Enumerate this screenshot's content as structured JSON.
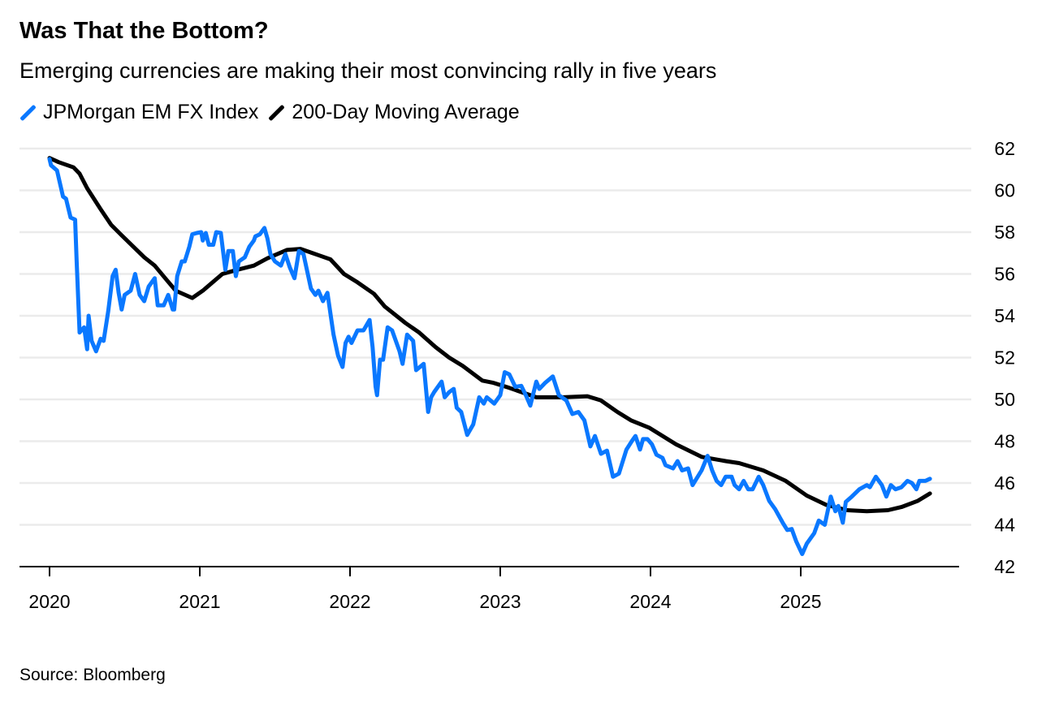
{
  "chart_data": {
    "type": "line",
    "title": "Was That the Bottom?",
    "subtitle": "Emerging currencies are making their most convincing rally in five years",
    "source": "Source: Bloomberg",
    "xlabel": "",
    "ylabel": "",
    "xlim": [
      2019.8,
      2025.95
    ],
    "ylim": [
      42,
      62
    ],
    "y_ticks": [
      42,
      44,
      46,
      48,
      50,
      52,
      54,
      56,
      58,
      60,
      62
    ],
    "x_ticks": [
      2020,
      2021,
      2022,
      2023,
      2024,
      2025
    ],
    "x_tick_labels": [
      "2020",
      "2021",
      "2022",
      "2023",
      "2024",
      "2025"
    ],
    "y_axis_side": "right",
    "grid": "horizontal",
    "legend_placement": "top-left",
    "series": [
      {
        "name": "JPMorgan EM FX Index",
        "color": "#0a78ff",
        "x": [
          2020.0,
          2020.01,
          2020.05,
          2020.09,
          2020.11,
          2020.14,
          2020.17,
          2020.18,
          2020.2,
          2020.23,
          2020.25,
          2020.26,
          2020.28,
          2020.31,
          2020.34,
          2020.36,
          2020.39,
          2020.42,
          2020.44,
          2020.46,
          2020.48,
          2020.5,
          2020.54,
          2020.57,
          2020.6,
          2020.63,
          2020.66,
          2020.7,
          2020.72,
          2020.76,
          2020.79,
          2020.82,
          2020.83,
          2020.85,
          2020.88,
          2020.9,
          2020.93,
          2020.95,
          2020.98,
          2021.01,
          2021.02,
          2021.04,
          2021.06,
          2021.09,
          2021.11,
          2021.14,
          2021.17,
          2021.19,
          2021.22,
          2021.24,
          2021.26,
          2021.3,
          2021.33,
          2021.36,
          2021.37,
          2021.4,
          2021.43,
          2021.45,
          2021.47,
          2021.5,
          2021.54,
          2021.57,
          2021.6,
          2021.63,
          2021.66,
          2021.69,
          2021.74,
          2021.77,
          2021.79,
          2021.82,
          2021.85,
          2021.87,
          2021.89,
          2021.92,
          2021.95,
          2021.97,
          2021.99,
          2022.01,
          2022.05,
          2022.09,
          2022.13,
          2022.15,
          2022.17,
          2022.18,
          2022.2,
          2022.22,
          2022.25,
          2022.28,
          2022.33,
          2022.35,
          2022.38,
          2022.42,
          2022.44,
          2022.49,
          2022.52,
          2022.54,
          2022.56,
          2022.61,
          2022.63,
          2022.66,
          2022.69,
          2022.71,
          2022.74,
          2022.78,
          2022.82,
          2022.86,
          2022.89,
          2022.91,
          2022.96,
          2023.0,
          2023.03,
          2023.06,
          2023.1,
          2023.14,
          2023.17,
          2023.2,
          2023.24,
          2023.26,
          2023.3,
          2023.35,
          2023.39,
          2023.44,
          2023.48,
          2023.52,
          2023.56,
          2023.6,
          2023.63,
          2023.67,
          2023.71,
          2023.75,
          2023.79,
          2023.84,
          2023.88,
          2023.9,
          2023.93,
          2023.95,
          2023.98,
          2024.01,
          2024.04,
          2024.08,
          2024.1,
          2024.15,
          2024.18,
          2024.21,
          2024.25,
          2024.28,
          2024.34,
          2024.38,
          2024.41,
          2024.44,
          2024.47,
          2024.5,
          2024.54,
          2024.56,
          2024.59,
          2024.62,
          2024.65,
          2024.68,
          2024.72,
          2024.75,
          2024.79,
          2024.83,
          2024.88,
          2024.91,
          2024.94,
          2024.97,
          2025.01,
          2025.04,
          2025.09,
          2025.12,
          2025.16,
          2025.2,
          2025.23,
          2025.25,
          2025.28,
          2025.3,
          2025.34,
          2025.39,
          2025.44,
          2025.46,
          2025.5,
          2025.54,
          2025.57,
          2025.6,
          2025.63,
          2025.67,
          2025.71,
          2025.74,
          2025.77,
          2025.79,
          2025.83,
          2025.86
        ],
        "y": [
          61.5,
          61.2,
          60.95,
          59.7,
          59.6,
          58.7,
          58.6,
          56.7,
          53.2,
          53.45,
          52.4,
          54.0,
          52.8,
          52.3,
          52.9,
          52.8,
          54.2,
          55.9,
          56.2,
          55.1,
          54.3,
          55.0,
          55.2,
          56.0,
          55.0,
          54.7,
          55.4,
          55.8,
          54.5,
          54.5,
          55.0,
          54.3,
          54.3,
          55.9,
          56.6,
          56.6,
          57.3,
          57.9,
          57.96,
          58.0,
          57.6,
          57.96,
          57.4,
          57.4,
          58.0,
          57.96,
          56.2,
          57.1,
          57.1,
          55.9,
          56.6,
          56.8,
          57.3,
          57.6,
          57.8,
          57.9,
          58.2,
          57.7,
          56.95,
          56.6,
          56.4,
          56.95,
          56.3,
          55.8,
          57.1,
          56.95,
          55.3,
          55.0,
          55.2,
          54.7,
          55.1,
          54.1,
          53.1,
          52.1,
          51.55,
          52.7,
          53.0,
          52.7,
          53.3,
          53.3,
          53.8,
          52.5,
          50.6,
          50.2,
          51.9,
          51.9,
          53.45,
          53.3,
          52.3,
          51.7,
          53.1,
          52.8,
          51.4,
          51.7,
          49.4,
          50.1,
          50.35,
          50.85,
          50.1,
          50.35,
          50.5,
          49.6,
          49.4,
          48.3,
          48.8,
          50.1,
          49.8,
          50.1,
          49.8,
          50.2,
          51.3,
          51.2,
          50.6,
          50.65,
          50.2,
          49.7,
          50.85,
          50.5,
          50.8,
          51.1,
          50.2,
          49.95,
          49.3,
          49.4,
          49.0,
          47.75,
          48.25,
          47.4,
          47.55,
          46.3,
          46.45,
          47.6,
          48.05,
          48.25,
          47.6,
          48.1,
          48.1,
          47.85,
          47.35,
          47.2,
          46.85,
          46.7,
          47.05,
          46.6,
          46.7,
          45.9,
          46.6,
          47.3,
          46.6,
          46.1,
          45.9,
          46.3,
          46.3,
          45.9,
          45.7,
          46.1,
          45.7,
          45.7,
          46.3,
          45.9,
          45.15,
          44.75,
          44.1,
          43.75,
          43.8,
          43.2,
          42.6,
          43.1,
          43.6,
          44.2,
          44.0,
          45.35,
          44.65,
          44.9,
          44.1,
          45.1,
          45.35,
          45.7,
          45.9,
          45.8,
          46.3,
          45.9,
          45.35,
          45.9,
          45.7,
          45.8,
          46.1,
          46.0,
          45.7,
          46.1,
          46.1,
          46.2
        ]
      },
      {
        "name": "200-Day Moving Average",
        "color": "#000000",
        "x": [
          2020.0,
          2020.06,
          2020.16,
          2020.2,
          2020.25,
          2020.34,
          2020.41,
          2020.48,
          2020.63,
          2020.7,
          2020.77,
          2020.84,
          2020.95,
          2021.02,
          2021.15,
          2021.25,
          2021.36,
          2021.45,
          2021.58,
          2021.67,
          2021.79,
          2021.87,
          2021.96,
          2022.05,
          2022.16,
          2022.23,
          2022.37,
          2022.46,
          2022.57,
          2022.66,
          2022.75,
          2022.88,
          2022.95,
          2023.06,
          2023.24,
          2023.42,
          2023.58,
          2023.67,
          2023.78,
          2023.87,
          2023.99,
          2024.17,
          2024.34,
          2024.5,
          2024.59,
          2024.75,
          2024.9,
          2025.04,
          2025.17,
          2025.31,
          2025.44,
          2025.58,
          2025.67,
          2025.78,
          2025.86
        ],
        "y": [
          61.55,
          61.35,
          61.1,
          60.8,
          60.1,
          59.1,
          58.35,
          57.85,
          56.8,
          56.4,
          55.8,
          55.2,
          54.85,
          55.2,
          56.0,
          56.2,
          56.4,
          56.75,
          57.15,
          57.2,
          56.9,
          56.7,
          56.0,
          55.6,
          55.05,
          54.45,
          53.65,
          53.2,
          52.5,
          52.0,
          51.6,
          50.9,
          50.8,
          50.55,
          50.1,
          50.1,
          50.15,
          49.95,
          49.4,
          49.0,
          48.65,
          47.85,
          47.25,
          47.05,
          46.95,
          46.6,
          46.1,
          45.4,
          44.95,
          44.7,
          44.65,
          44.7,
          44.85,
          45.15,
          45.5
        ]
      }
    ]
  }
}
